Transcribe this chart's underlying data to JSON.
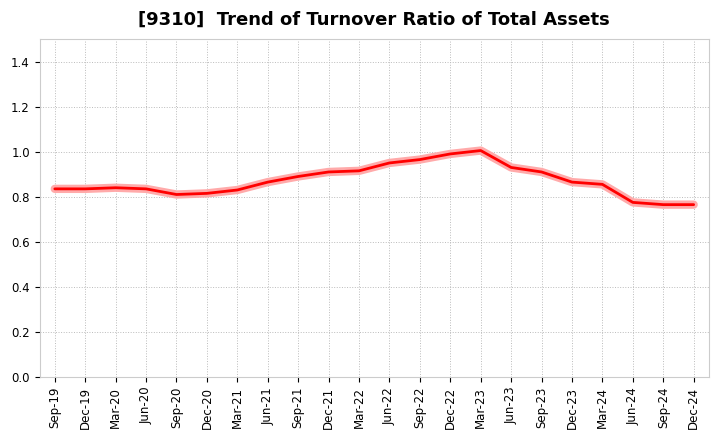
{
  "title": "[9310]  Trend of Turnover Ratio of Total Assets",
  "x_labels": [
    "Sep-19",
    "Dec-19",
    "Mar-20",
    "Jun-20",
    "Sep-20",
    "Dec-20",
    "Mar-21",
    "Jun-21",
    "Sep-21",
    "Dec-21",
    "Mar-22",
    "Jun-22",
    "Sep-22",
    "Dec-22",
    "Mar-23",
    "Jun-23",
    "Sep-23",
    "Dec-23",
    "Mar-24",
    "Jun-24",
    "Sep-24",
    "Dec-24"
  ],
  "y_values": [
    0.835,
    0.835,
    0.84,
    0.835,
    0.81,
    0.815,
    0.83,
    0.865,
    0.89,
    0.91,
    0.915,
    0.95,
    0.965,
    0.99,
    1.005,
    0.93,
    0.91,
    0.865,
    0.855,
    0.775,
    0.765,
    0.765
  ],
  "line_color": "#FF0000",
  "line_width": 2.0,
  "shadow_color": "#FFAAAA",
  "shadow_linewidth": 6.0,
  "ylim": [
    0.0,
    1.5
  ],
  "yticks": [
    0.0,
    0.2,
    0.4,
    0.6,
    0.8,
    1.0,
    1.2,
    1.4
  ],
  "grid_color": "#bbbbbb",
  "grid_style": "dotted",
  "background_color": "#ffffff",
  "title_fontsize": 13,
  "tick_fontsize": 8.5
}
